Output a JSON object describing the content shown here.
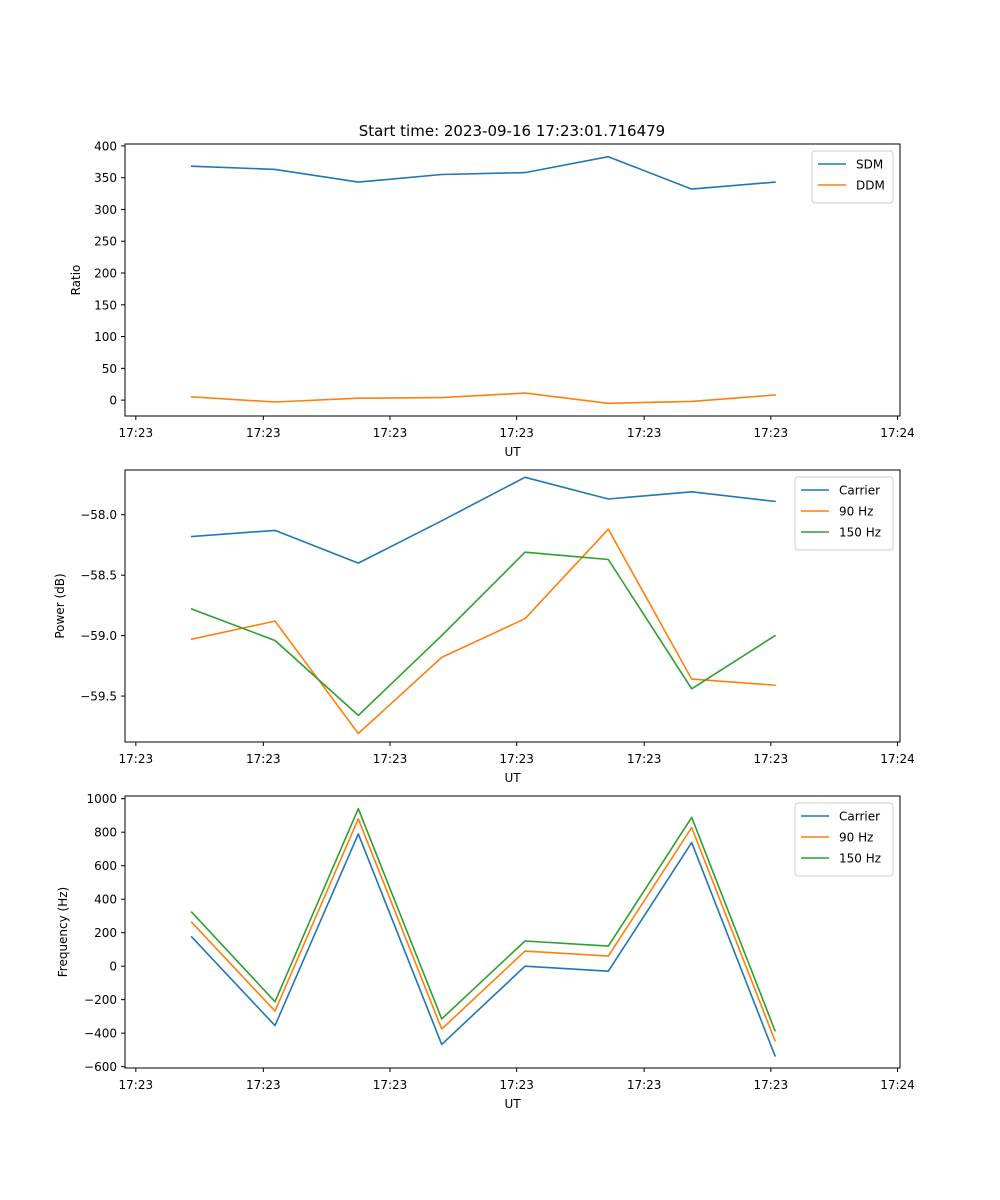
{
  "figure_title": "Start time: 2023-09-16 17:23:01.716479",
  "colors": {
    "blue": "#1f77b4",
    "orange": "#ff7f0e",
    "green": "#2ca02c"
  },
  "chart_data": [
    {
      "type": "line",
      "title": "Start time: 2023-09-16 17:23:01.716479",
      "xlabel": "UT",
      "ylabel": "Ratio",
      "x": [
        1,
        2,
        3,
        4,
        5,
        6,
        7,
        8
      ],
      "xlim": [
        0.2,
        9.5
      ],
      "xticks": [
        0.33,
        1.86,
        3.38,
        4.9,
        6.43,
        7.95,
        9.47
      ],
      "xtick_labels": [
        "17:23",
        "17:23",
        "17:23",
        "17:23",
        "17:23",
        "17:23",
        "17:24"
      ],
      "ylim": [
        -25,
        403
      ],
      "yticks": [
        0,
        50,
        100,
        150,
        200,
        250,
        300,
        350,
        400
      ],
      "ytick_labels": [
        "0",
        "50",
        "100",
        "150",
        "200",
        "250",
        "300",
        "350",
        "400"
      ],
      "legend": "top-right",
      "series": [
        {
          "name": "SDM",
          "color": "#1f77b4",
          "values": [
            368,
            363,
            343,
            355,
            358,
            383,
            332,
            343
          ]
        },
        {
          "name": "DDM",
          "color": "#ff7f0e",
          "values": [
            5,
            -3,
            3,
            4,
            11,
            -5,
            -2,
            8
          ]
        }
      ]
    },
    {
      "type": "line",
      "xlabel": "UT",
      "ylabel": "Power (dB)",
      "x": [
        1,
        2,
        3,
        4,
        5,
        6,
        7,
        8
      ],
      "xlim": [
        0.2,
        9.5
      ],
      "xticks": [
        0.33,
        1.86,
        3.38,
        4.9,
        6.43,
        7.95,
        9.47
      ],
      "xtick_labels": [
        "17:23",
        "17:23",
        "17:23",
        "17:23",
        "17:23",
        "17:23",
        "17:24"
      ],
      "ylim": [
        -59.88,
        -57.63
      ],
      "yticks": [
        -58.0,
        -58.5,
        -59.0,
        -59.5
      ],
      "ytick_labels": [
        "−58.0",
        "−58.5",
        "−59.0",
        "−59.5"
      ],
      "legend": "top-right",
      "series": [
        {
          "name": "Carrier",
          "color": "#1f77b4",
          "values": [
            -58.18,
            -58.13,
            -58.4,
            -58.05,
            -57.69,
            -57.87,
            -57.81,
            -57.89
          ]
        },
        {
          "name": "90 Hz",
          "color": "#ff7f0e",
          "values": [
            -59.03,
            -58.88,
            -59.81,
            -59.18,
            -58.86,
            -58.12,
            -59.36,
            -59.41
          ]
        },
        {
          "name": "150 Hz",
          "color": "#2ca02c",
          "values": [
            -58.78,
            -59.04,
            -59.66,
            -59.0,
            -58.31,
            -58.37,
            -59.44,
            -59.0
          ]
        }
      ]
    },
    {
      "type": "line",
      "xlabel": "UT",
      "ylabel": "Frequency (Hz)",
      "x": [
        1,
        2,
        3,
        4,
        5,
        6,
        7,
        8
      ],
      "xlim": [
        0.2,
        9.5
      ],
      "xticks": [
        0.33,
        1.86,
        3.38,
        4.9,
        6.43,
        7.95,
        9.47
      ],
      "xtick_labels": [
        "17:23",
        "17:23",
        "17:23",
        "17:23",
        "17:23",
        "17:23",
        "17:24"
      ],
      "ylim": [
        -608,
        1016
      ],
      "yticks": [
        1000,
        800,
        600,
        400,
        200,
        0,
        -200,
        -400,
        -600
      ],
      "ytick_labels": [
        "1000",
        "800",
        "600",
        "400",
        "200",
        "0",
        "−200",
        "−400",
        "−600"
      ],
      "legend": "top-right",
      "series": [
        {
          "name": "Carrier",
          "color": "#1f77b4",
          "values": [
            175,
            -355,
            790,
            -467,
            0,
            -30,
            738,
            -535
          ]
        },
        {
          "name": "90 Hz",
          "color": "#ff7f0e",
          "values": [
            262,
            -268,
            880,
            -375,
            90,
            60,
            828,
            -445
          ]
        },
        {
          "name": "150 Hz",
          "color": "#2ca02c",
          "values": [
            322,
            -212,
            940,
            -315,
            150,
            120,
            888,
            -385
          ]
        }
      ]
    }
  ]
}
